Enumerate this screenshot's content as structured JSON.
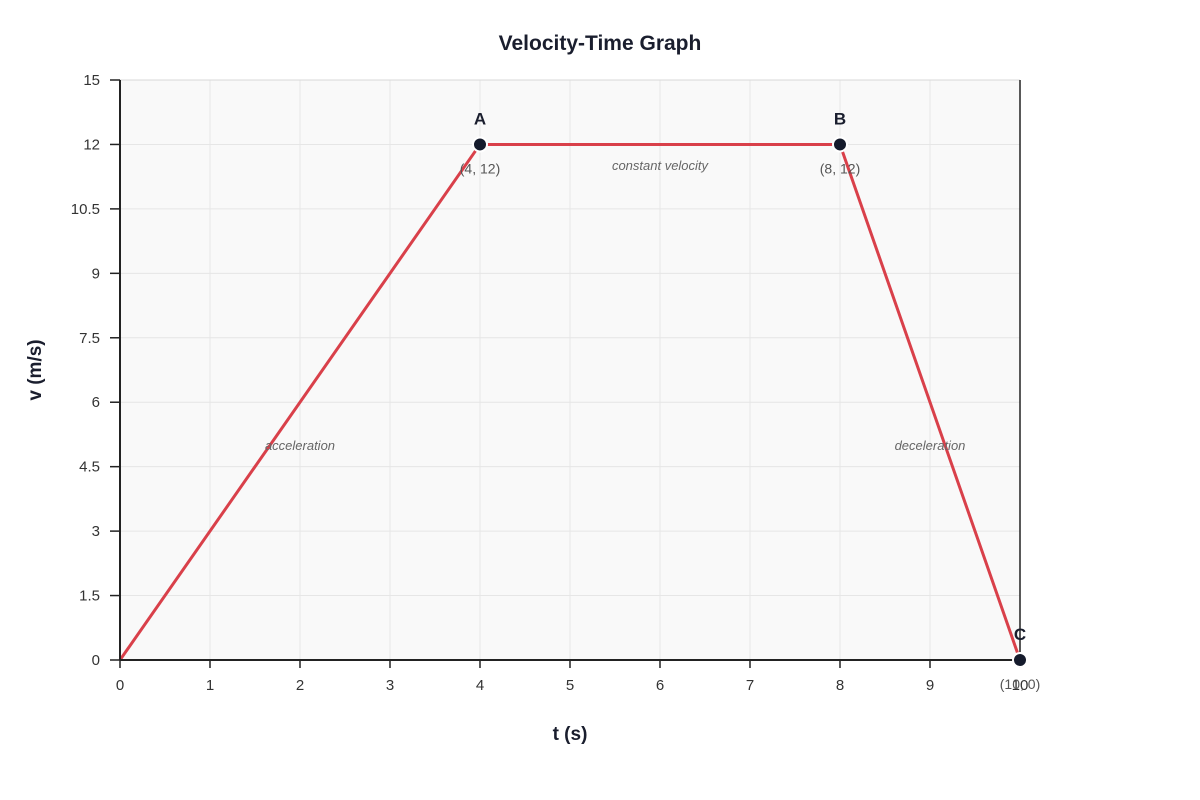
{
  "chart_data": {
    "type": "line",
    "title": "Velocity-Time Graph",
    "xlabel": "t (s)",
    "ylabel": "v (m/s)",
    "xlim": [
      0,
      10
    ],
    "ylim": [
      0,
      15
    ],
    "x_ticks": [
      0,
      1,
      2,
      3,
      4,
      5,
      6,
      7,
      8,
      9,
      10
    ],
    "y_ticks": [
      "0",
      "1.5",
      "3",
      "4.5",
      "6",
      "7.5",
      "9",
      "10.5",
      "12",
      "15"
    ],
    "grid": true,
    "series": [
      {
        "color": "#d9404a",
        "x": [
          0,
          4,
          8,
          10
        ],
        "y": [
          0,
          12,
          12,
          0
        ]
      }
    ],
    "points": [
      {
        "name": "A",
        "coord": "(4, 12)",
        "x": 4,
        "y": 12
      },
      {
        "name": "B",
        "coord": "(8, 12)",
        "x": 8,
        "y": 12
      },
      {
        "name": "C",
        "coord": "(10, 0)",
        "x": 10,
        "y": 0
      }
    ],
    "annotations": [
      {
        "text": "acceleration",
        "x": 2,
        "y": 5.6
      },
      {
        "text": "constant velocity",
        "x": 6,
        "y": 12.8
      },
      {
        "text": "deceleration",
        "x": 9,
        "y": 5.6
      }
    ]
  }
}
